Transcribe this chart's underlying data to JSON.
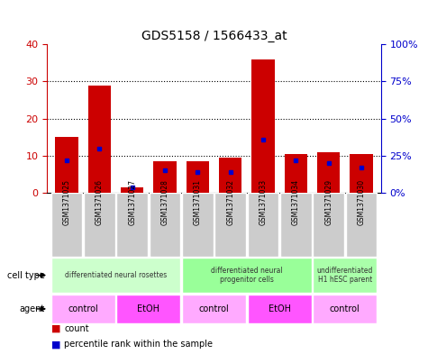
{
  "title": "GDS5158 / 1566433_at",
  "samples": [
    "GSM1371025",
    "GSM1371026",
    "GSM1371027",
    "GSM1371028",
    "GSM1371031",
    "GSM1371032",
    "GSM1371033",
    "GSM1371034",
    "GSM1371029",
    "GSM1371030"
  ],
  "counts": [
    15,
    29,
    1.5,
    8.5,
    8.5,
    9.5,
    36,
    10.5,
    11,
    10.5
  ],
  "percentiles": [
    22,
    30,
    4,
    15,
    14,
    14,
    36,
    22,
    20,
    17
  ],
  "ylim_left": [
    0,
    40
  ],
  "ylim_right": [
    0,
    100
  ],
  "yticks_left": [
    0,
    10,
    20,
    30,
    40
  ],
  "yticks_right": [
    0,
    25,
    50,
    75,
    100
  ],
  "ytick_labels_right": [
    "0%",
    "25%",
    "50%",
    "75%",
    "100%"
  ],
  "bar_color": "#cc0000",
  "percentile_color": "#0000cc",
  "left_axis_color": "#cc0000",
  "right_axis_color": "#0000cc",
  "sample_box_color": "#cccccc",
  "cell_type_groups": [
    {
      "label": "differentiated neural rosettes",
      "start": 0,
      "end": 3,
      "color": "#ccffcc"
    },
    {
      "label": "differentiated neural\nprogenitor cells",
      "start": 4,
      "end": 7,
      "color": "#99ff99"
    },
    {
      "label": "undifferentiated\nH1 hESC parent",
      "start": 8,
      "end": 9,
      "color": "#aaffaa"
    }
  ],
  "agent_groups": [
    {
      "label": "control",
      "start": 0,
      "end": 1,
      "color": "#ffaaff"
    },
    {
      "label": "EtOH",
      "start": 2,
      "end": 3,
      "color": "#ff55ff"
    },
    {
      "label": "control",
      "start": 4,
      "end": 5,
      "color": "#ffaaff"
    },
    {
      "label": "EtOH",
      "start": 6,
      "end": 7,
      "color": "#ff55ff"
    },
    {
      "label": "control",
      "start": 8,
      "end": 9,
      "color": "#ffaaff"
    }
  ],
  "legend": [
    {
      "label": "count",
      "color": "#cc0000"
    },
    {
      "label": "percentile rank within the sample",
      "color": "#0000cc"
    }
  ]
}
